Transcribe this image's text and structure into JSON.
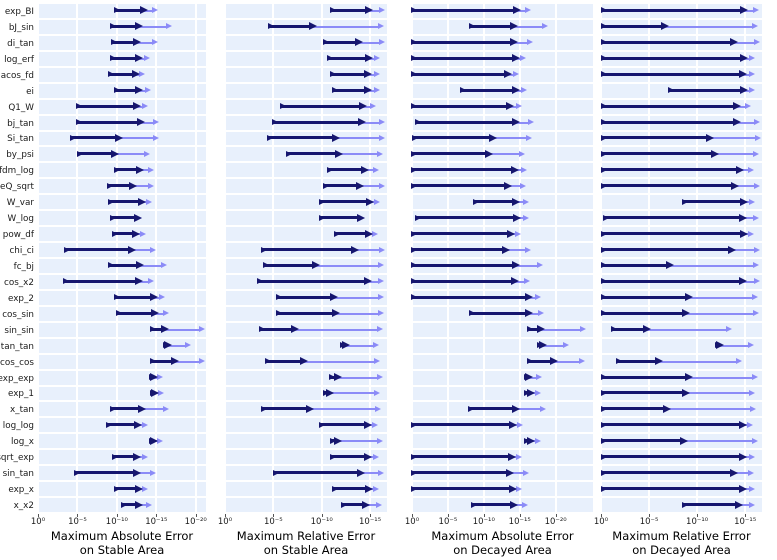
{
  "colors": {
    "dark_arrow": "#16166f",
    "light_arrow": "#8b8bf7",
    "panel_background": "#e8f0fc",
    "gridline": "#ffffff",
    "text": "#1a1a1a"
  },
  "chart_data": {
    "type": "arrow-range",
    "description": "Four horizontal log-scale arrow charts; rows give [-log10 dark_start, -log10 dark_end, -log10 light_end] per function",
    "categories": [
      "exp_BI",
      "bJ_sin",
      "di_tan",
      "log_erf",
      "acos_fd",
      "ei",
      "Q1_W",
      "bj_tan",
      "Si_tan",
      "by_psi",
      "fdm_log",
      "eQ_sqrt",
      "W_var",
      "W_log",
      "pow_df",
      "chi_ci",
      "fc_bj",
      "cos_x2",
      "exp_2",
      "cos_sin",
      "sin_sin",
      "tan_tan",
      "cos_cos",
      "exp_exp",
      "exp_1",
      "x_tan",
      "log_log",
      "log_x",
      "sqrt_exp",
      "sin_tan",
      "exp_x",
      "x_x2"
    ],
    "series_names": [
      "dark-arrow",
      "light-arrow"
    ],
    "panels": [
      {
        "title_lines": [
          "Maximum Absolute Error",
          "on Stable Area"
        ],
        "xscale": "log-inverted",
        "xmax_neg_exponent": 21.3,
        "ticks": [
          {
            "label": "10⁰",
            "exp": 0
          },
          {
            "label": "10⁻⁵",
            "exp": 5
          },
          {
            "label": "10⁻¹⁰",
            "exp": 10
          },
          {
            "label": "10⁻¹⁵",
            "exp": 15
          },
          {
            "label": "10⁻²⁰",
            "exp": 20
          }
        ],
        "rows": [
          [
            9.7,
            13.9,
            15.2
          ],
          [
            9.3,
            13.3,
            17.0
          ],
          [
            9.4,
            13.1,
            15.2
          ],
          [
            9.3,
            13.3,
            14.2
          ],
          [
            9.0,
            12.9,
            13.6
          ],
          [
            9.8,
            13.3,
            14.3
          ],
          [
            5.0,
            13.0,
            14.0
          ],
          [
            5.0,
            13.6,
            15.4
          ],
          [
            4.2,
            10.8,
            15.3
          ],
          [
            5.1,
            10.3,
            14.2
          ],
          [
            9.7,
            13.5,
            14.7
          ],
          [
            8.9,
            12.5,
            14.7
          ],
          [
            9.0,
            13.7,
            14.5
          ],
          [
            9.2,
            13.2,
            13.2
          ],
          [
            9.5,
            12.9,
            13.7
          ],
          [
            3.4,
            12.4,
            14.9
          ],
          [
            9.0,
            13.5,
            16.4
          ],
          [
            3.3,
            13.3,
            14.7
          ],
          [
            9.8,
            15.2,
            16.1
          ],
          [
            10.0,
            15.3,
            16.6
          ],
          [
            14.3,
            16.6,
            21.2
          ],
          [
            16.0,
            17.0,
            19.4
          ],
          [
            14.3,
            17.9,
            21.2
          ],
          [
            14.2,
            15.2,
            15.9
          ],
          [
            14.3,
            15.3,
            16.0
          ],
          [
            9.3,
            13.7,
            16.6
          ],
          [
            8.7,
            13.2,
            14.0
          ],
          [
            14.2,
            15.2,
            15.9
          ],
          [
            9.5,
            13.1,
            14.0
          ],
          [
            4.7,
            13.0,
            14.9
          ],
          [
            9.8,
            13.3,
            14.0
          ],
          [
            10.7,
            13.3,
            14.4
          ]
        ]
      },
      {
        "title_lines": [
          "Maximum Relative Error",
          "on Stable Area"
        ],
        "xscale": "log-inverted",
        "xmax_neg_exponent": 16.75,
        "ticks": [
          {
            "label": "10⁰",
            "exp": 0
          },
          {
            "label": "10⁻⁵",
            "exp": 5
          },
          {
            "label": "10⁻¹⁰",
            "exp": 10
          },
          {
            "label": "10⁻¹⁵",
            "exp": 15
          }
        ],
        "rows": [
          [
            11.0,
            15.3,
            16.5
          ],
          [
            4.5,
            9.5,
            16.4
          ],
          [
            10.2,
            14.3,
            16.5
          ],
          [
            10.7,
            15.3,
            16.0
          ],
          [
            11.0,
            15.2,
            16.0
          ],
          [
            11.2,
            15.2,
            16.0
          ],
          [
            5.8,
            14.7,
            15.6
          ],
          [
            5.0,
            14.6,
            16.5
          ],
          [
            4.4,
            11.9,
            16.5
          ],
          [
            6.4,
            12.2,
            16.3
          ],
          [
            10.7,
            14.9,
            15.9
          ],
          [
            10.2,
            14.4,
            16.5
          ],
          [
            9.8,
            15.4,
            16.0
          ],
          [
            9.8,
            14.5,
            14.5
          ],
          [
            11.4,
            15.3,
            15.8
          ],
          [
            3.8,
            13.9,
            16.5
          ],
          [
            4.0,
            9.8,
            16.4
          ],
          [
            3.4,
            15.2,
            16.4
          ],
          [
            5.4,
            11.7,
            16.4
          ],
          [
            5.4,
            11.9,
            16.4
          ],
          [
            3.6,
            7.6,
            16.3
          ],
          [
            12.0,
            12.9,
            15.9
          ],
          [
            4.2,
            8.6,
            16.0
          ],
          [
            10.9,
            12.1,
            16.3
          ],
          [
            10.2,
            11.3,
            16.0
          ],
          [
            3.8,
            9.2,
            16.1
          ],
          [
            9.8,
            15.2,
            15.8
          ],
          [
            11.0,
            12.1,
            16.3
          ],
          [
            11.0,
            15.2,
            15.9
          ],
          [
            5.1,
            14.5,
            16.4
          ],
          [
            11.2,
            15.3,
            15.9
          ],
          [
            12.1,
            15.0,
            16.2
          ]
        ]
      },
      {
        "title_lines": [
          "Maximum Absolute Error",
          "on Decayed Area"
        ],
        "xscale": "log-inverted",
        "xmax_neg_exponent": 25.2,
        "ticks": [
          {
            "label": "10⁰",
            "exp": 0
          },
          {
            "label": "10⁻⁵",
            "exp": 5
          },
          {
            "label": "10⁻¹⁰",
            "exp": 10
          },
          {
            "label": "10⁻¹⁵",
            "exp": 15
          },
          {
            "label": "10⁻²⁰",
            "exp": 20
          }
        ],
        "rows": [
          [
            0,
            15.2,
            16.5
          ],
          [
            8.1,
            14.8,
            19.0
          ],
          [
            0,
            14.7,
            16.9
          ],
          [
            0,
            15.0,
            15.9
          ],
          [
            0,
            13.9,
            14.9
          ],
          [
            6.8,
            15.0,
            16.0
          ],
          [
            0,
            14.2,
            15.3
          ],
          [
            0.6,
            15.1,
            17.0
          ],
          [
            0.2,
            11.8,
            16.7
          ],
          [
            0,
            11.3,
            15.7
          ],
          [
            0,
            14.9,
            16.0
          ],
          [
            0,
            13.9,
            15.9
          ],
          [
            8.6,
            15.1,
            16.3
          ],
          [
            0.5,
            15.2,
            16.3
          ],
          [
            0,
            14.3,
            15.2
          ],
          [
            0,
            13.7,
            16.6
          ],
          [
            0,
            15.0,
            18.3
          ],
          [
            0,
            14.9,
            16.4
          ],
          [
            0,
            16.8,
            17.9
          ],
          [
            8.1,
            16.9,
            18.4
          ],
          [
            16.1,
            18.5,
            24.2
          ],
          [
            17.6,
            18.8,
            21.9
          ],
          [
            16.2,
            20.3,
            24.1
          ],
          [
            15.7,
            16.9,
            18.1
          ],
          [
            15.8,
            17.1,
            17.9
          ],
          [
            7.9,
            15.1,
            18.6
          ],
          [
            0,
            14.6,
            15.5
          ],
          [
            15.8,
            17.1,
            17.9
          ],
          [
            0,
            14.5,
            15.3
          ],
          [
            0,
            14.2,
            16.3
          ],
          [
            0,
            14.6,
            15.3
          ],
          [
            8.3,
            14.7,
            16.1
          ]
        ]
      },
      {
        "title_lines": [
          "Maximum Relative Error",
          "on Decayed Area"
        ],
        "xscale": "log-inverted",
        "xmax_neg_exponent": 16.75,
        "ticks": [
          {
            "label": "10⁰",
            "exp": 0
          },
          {
            "label": "10⁻⁵",
            "exp": 5
          },
          {
            "label": "10⁻¹⁰",
            "exp": 10
          },
          {
            "label": "10⁻¹⁵",
            "exp": 15
          }
        ],
        "rows": [
          [
            0.1,
            15.3,
            16.4
          ],
          [
            0.1,
            7.1,
            16.3
          ],
          [
            0.1,
            14.3,
            16.5
          ],
          [
            0.1,
            15.3,
            16.0
          ],
          [
            0.1,
            15.2,
            16.0
          ],
          [
            7.1,
            15.3,
            16.0
          ],
          [
            0.1,
            14.6,
            15.6
          ],
          [
            0.1,
            14.6,
            16.5
          ],
          [
            0.1,
            11.8,
            16.6
          ],
          [
            0.1,
            12.3,
            16.4
          ],
          [
            0.1,
            14.9,
            15.9
          ],
          [
            0.1,
            14.4,
            16.5
          ],
          [
            8.5,
            15.3,
            16.0
          ],
          [
            0.3,
            15.2,
            16.4
          ],
          [
            0.1,
            15.3,
            15.9
          ],
          [
            0.1,
            14.0,
            16.5
          ],
          [
            0.1,
            7.6,
            16.4
          ],
          [
            0.1,
            15.2,
            16.5
          ],
          [
            0.1,
            9.6,
            16.3
          ],
          [
            0.1,
            9.3,
            16.4
          ],
          [
            1.1,
            5.2,
            13.6
          ],
          [
            12.0,
            12.8,
            15.9
          ],
          [
            1.7,
            6.5,
            14.7
          ],
          [
            0.1,
            9.6,
            16.3
          ],
          [
            0.1,
            9.3,
            16.0
          ],
          [
            0.1,
            7.3,
            16.1
          ],
          [
            0.1,
            15.2,
            15.8
          ],
          [
            0.1,
            9.1,
            16.3
          ],
          [
            0.1,
            15.2,
            16.0
          ],
          [
            0.1,
            14.3,
            15.9
          ],
          [
            0.1,
            15.2,
            16.0
          ],
          [
            8.5,
            14.8,
            16.0
          ]
        ]
      }
    ]
  }
}
